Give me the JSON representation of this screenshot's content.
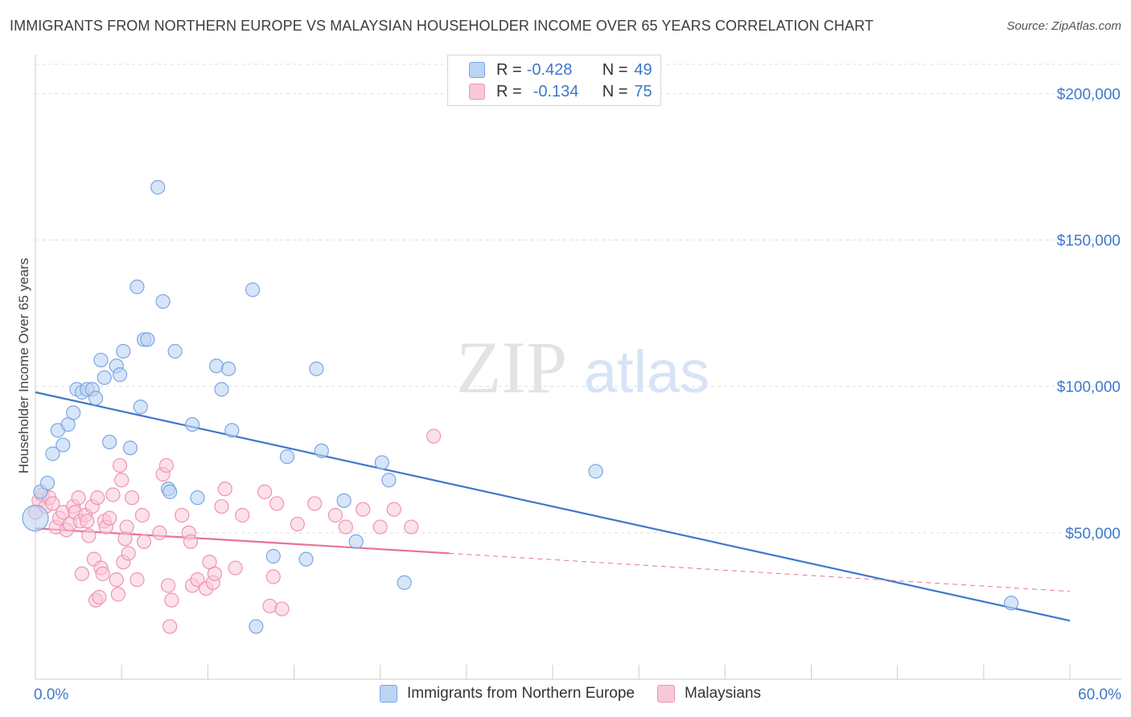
{
  "title": "IMMIGRANTS FROM NORTHERN EUROPE VS MALAYSIAN HOUSEHOLDER INCOME OVER 65 YEARS CORRELATION CHART",
  "source": "Source: ZipAtlas.com",
  "watermark": {
    "zip": "ZIP",
    "atlas": "atlas"
  },
  "legend": {
    "r_label": "R =",
    "n_label": "N =",
    "series1": {
      "r": "-0.428",
      "n": "49"
    },
    "series2": {
      "r": "-0.134",
      "n": "75"
    }
  },
  "chart_data": {
    "type": "scatter",
    "title": "IMMIGRANTS FROM NORTHERN EUROPE VS MALAYSIAN HOUSEHOLDER INCOME OVER 65 YEARS CORRELATION CHART",
    "xlabel": "",
    "ylabel": "Householder Income Over 65 years",
    "xlim": [
      0,
      60
    ],
    "ylim": [
      0,
      210000
    ],
    "x_tick_labels": [
      "0.0%",
      "60.0%"
    ],
    "y_ticks": [
      50000,
      100000,
      150000,
      200000
    ],
    "y_tick_labels": [
      "$50,000",
      "$100,000",
      "$150,000",
      "$200,000"
    ],
    "grid": true,
    "legend_position": "bottom",
    "colors": {
      "series1": "#3e78c9",
      "series1_fill": "#bcd4f3",
      "series2": "#e8729a",
      "series2_fill": "#f9c8d8"
    },
    "series": [
      {
        "name": "Immigrants from Northern Europe",
        "trend": {
          "x0": 0,
          "y0": 98000,
          "x1": 60,
          "y1": 20000
        },
        "points": [
          {
            "x": 0.0,
            "y": 55000,
            "big": true
          },
          {
            "x": 0.3,
            "y": 64000
          },
          {
            "x": 0.7,
            "y": 67000
          },
          {
            "x": 1.0,
            "y": 77000
          },
          {
            "x": 1.3,
            "y": 85000
          },
          {
            "x": 1.6,
            "y": 80000
          },
          {
            "x": 1.9,
            "y": 87000
          },
          {
            "x": 2.2,
            "y": 91000
          },
          {
            "x": 2.4,
            "y": 99000
          },
          {
            "x": 2.7,
            "y": 98000
          },
          {
            "x": 3.0,
            "y": 99000
          },
          {
            "x": 3.3,
            "y": 99000
          },
          {
            "x": 3.5,
            "y": 96000
          },
          {
            "x": 3.8,
            "y": 109000
          },
          {
            "x": 4.0,
            "y": 103000
          },
          {
            "x": 4.3,
            "y": 81000
          },
          {
            "x": 4.7,
            "y": 107000
          },
          {
            "x": 4.9,
            "y": 104000
          },
          {
            "x": 5.1,
            "y": 112000
          },
          {
            "x": 5.5,
            "y": 79000
          },
          {
            "x": 5.9,
            "y": 134000
          },
          {
            "x": 6.1,
            "y": 93000
          },
          {
            "x": 6.3,
            "y": 116000
          },
          {
            "x": 6.5,
            "y": 116000
          },
          {
            "x": 7.1,
            "y": 168000
          },
          {
            "x": 7.4,
            "y": 129000
          },
          {
            "x": 7.7,
            "y": 65000
          },
          {
            "x": 7.8,
            "y": 64000
          },
          {
            "x": 8.1,
            "y": 112000
          },
          {
            "x": 9.1,
            "y": 87000
          },
          {
            "x": 9.4,
            "y": 62000
          },
          {
            "x": 10.5,
            "y": 107000
          },
          {
            "x": 10.8,
            "y": 99000
          },
          {
            "x": 11.2,
            "y": 106000
          },
          {
            "x": 11.4,
            "y": 85000
          },
          {
            "x": 12.6,
            "y": 133000
          },
          {
            "x": 12.8,
            "y": 18000
          },
          {
            "x": 13.8,
            "y": 42000
          },
          {
            "x": 14.6,
            "y": 76000
          },
          {
            "x": 15.7,
            "y": 41000
          },
          {
            "x": 16.3,
            "y": 106000
          },
          {
            "x": 16.6,
            "y": 78000
          },
          {
            "x": 17.9,
            "y": 61000
          },
          {
            "x": 18.6,
            "y": 47000
          },
          {
            "x": 20.1,
            "y": 74000
          },
          {
            "x": 20.5,
            "y": 68000
          },
          {
            "x": 21.4,
            "y": 33000
          },
          {
            "x": 32.5,
            "y": 71000
          },
          {
            "x": 56.6,
            "y": 26000
          }
        ]
      },
      {
        "name": "Malaysians",
        "trend": {
          "x0": 0,
          "y0": 51500,
          "x1": 24,
          "y1": 43000
        },
        "trend_extension": {
          "x0": 24,
          "y0": 43000,
          "x1": 60,
          "y1": 30000
        },
        "points": [
          {
            "x": 0.0,
            "y": 57000
          },
          {
            "x": 0.2,
            "y": 61000
          },
          {
            "x": 0.4,
            "y": 63000
          },
          {
            "x": 0.6,
            "y": 59000
          },
          {
            "x": 0.8,
            "y": 62000
          },
          {
            "x": 1.0,
            "y": 60000
          },
          {
            "x": 1.2,
            "y": 52000
          },
          {
            "x": 1.4,
            "y": 55000
          },
          {
            "x": 1.6,
            "y": 57000
          },
          {
            "x": 1.8,
            "y": 51000
          },
          {
            "x": 2.0,
            "y": 53000
          },
          {
            "x": 2.2,
            "y": 59000
          },
          {
            "x": 2.3,
            "y": 57000
          },
          {
            "x": 2.5,
            "y": 62000
          },
          {
            "x": 2.6,
            "y": 54000
          },
          {
            "x": 2.7,
            "y": 36000
          },
          {
            "x": 2.9,
            "y": 56000
          },
          {
            "x": 3.0,
            "y": 54000
          },
          {
            "x": 3.1,
            "y": 49000
          },
          {
            "x": 3.3,
            "y": 59000
          },
          {
            "x": 3.4,
            "y": 41000
          },
          {
            "x": 3.5,
            "y": 27000
          },
          {
            "x": 3.6,
            "y": 62000
          },
          {
            "x": 3.7,
            "y": 28000
          },
          {
            "x": 3.8,
            "y": 38000
          },
          {
            "x": 3.9,
            "y": 36000
          },
          {
            "x": 4.0,
            "y": 54000
          },
          {
            "x": 4.1,
            "y": 52000
          },
          {
            "x": 4.3,
            "y": 55000
          },
          {
            "x": 4.5,
            "y": 63000
          },
          {
            "x": 4.7,
            "y": 34000
          },
          {
            "x": 4.8,
            "y": 29000
          },
          {
            "x": 4.9,
            "y": 73000
          },
          {
            "x": 5.0,
            "y": 68000
          },
          {
            "x": 5.1,
            "y": 40000
          },
          {
            "x": 5.2,
            "y": 48000
          },
          {
            "x": 5.3,
            "y": 52000
          },
          {
            "x": 5.4,
            "y": 43000
          },
          {
            "x": 5.6,
            "y": 62000
          },
          {
            "x": 5.9,
            "y": 34000
          },
          {
            "x": 6.2,
            "y": 56000
          },
          {
            "x": 6.3,
            "y": 47000
          },
          {
            "x": 7.2,
            "y": 50000
          },
          {
            "x": 7.4,
            "y": 70000
          },
          {
            "x": 7.6,
            "y": 73000
          },
          {
            "x": 7.7,
            "y": 32000
          },
          {
            "x": 7.8,
            "y": 18000
          },
          {
            "x": 7.9,
            "y": 27000
          },
          {
            "x": 8.5,
            "y": 56000
          },
          {
            "x": 8.9,
            "y": 50000
          },
          {
            "x": 9.0,
            "y": 47000
          },
          {
            "x": 9.1,
            "y": 32000
          },
          {
            "x": 9.4,
            "y": 34000
          },
          {
            "x": 9.9,
            "y": 31000
          },
          {
            "x": 10.1,
            "y": 40000
          },
          {
            "x": 10.3,
            "y": 33000
          },
          {
            "x": 10.4,
            "y": 36000
          },
          {
            "x": 10.8,
            "y": 59000
          },
          {
            "x": 11.0,
            "y": 65000
          },
          {
            "x": 11.6,
            "y": 38000
          },
          {
            "x": 12.0,
            "y": 56000
          },
          {
            "x": 13.3,
            "y": 64000
          },
          {
            "x": 13.6,
            "y": 25000
          },
          {
            "x": 13.8,
            "y": 35000
          },
          {
            "x": 14.0,
            "y": 60000
          },
          {
            "x": 14.3,
            "y": 24000
          },
          {
            "x": 15.2,
            "y": 53000
          },
          {
            "x": 16.2,
            "y": 60000
          },
          {
            "x": 17.4,
            "y": 56000
          },
          {
            "x": 18.0,
            "y": 52000
          },
          {
            "x": 19.0,
            "y": 58000
          },
          {
            "x": 20.0,
            "y": 52000
          },
          {
            "x": 20.8,
            "y": 58000
          },
          {
            "x": 21.8,
            "y": 52000
          },
          {
            "x": 23.1,
            "y": 83000
          }
        ]
      }
    ]
  }
}
